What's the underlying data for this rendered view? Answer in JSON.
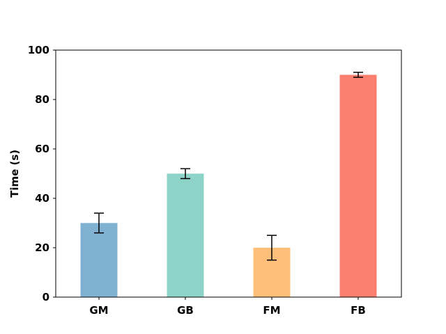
{
  "chart_data": {
    "type": "bar",
    "title": "",
    "xlabel": "",
    "ylabel": "Time (s)",
    "ylim": [
      0,
      100
    ],
    "yticks": [
      0,
      20,
      40,
      60,
      80,
      100
    ],
    "grid": false,
    "legend": "none",
    "categories": [
      "GM",
      "GB",
      "FM",
      "FB"
    ],
    "values": [
      30,
      50,
      20,
      90
    ],
    "errors": [
      4,
      2,
      5,
      1
    ],
    "colors": [
      "#80b1d3",
      "#8dd3c7",
      "#ffbe7a",
      "#fa7f6f"
    ]
  }
}
